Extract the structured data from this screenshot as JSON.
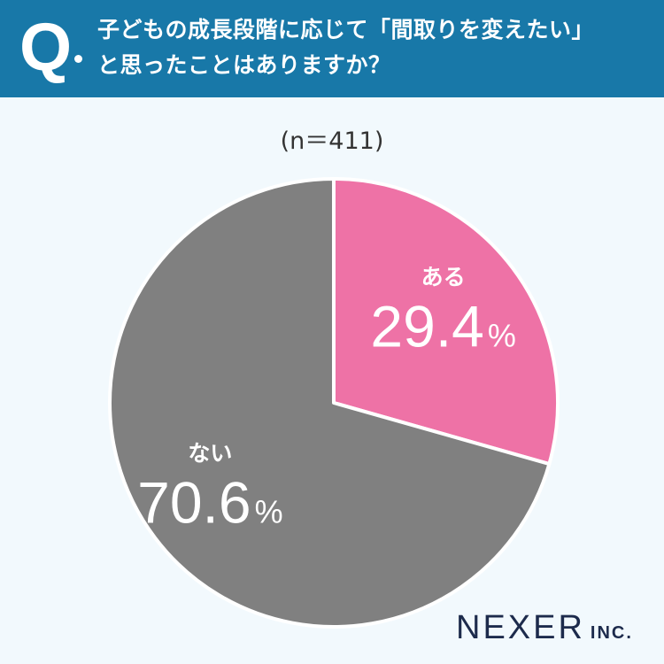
{
  "header": {
    "q_label": "Q",
    "question_line1": "子どもの成長段階に応じて「間取りを変えたい」",
    "question_line2": "と思ったことはありますか？"
  },
  "sample_label": "(n＝411)",
  "colors": {
    "header_bg": "#1878a8",
    "yes": "#ee72a6",
    "no": "#808080",
    "background": "#f2f9fd"
  },
  "chart_data": {
    "type": "pie",
    "title": "子どもの成長段階に応じて「間取りを変えたい」と思ったことはありますか？",
    "n": 411,
    "slices": [
      {
        "label": "ある",
        "value": 29.4,
        "display": "29.4",
        "unit": "%",
        "color": "#ee72a6"
      },
      {
        "label": "ない",
        "value": 70.6,
        "display": "70.6",
        "unit": "%",
        "color": "#808080"
      }
    ],
    "start": "top",
    "direction": "clockwise"
  },
  "logo": {
    "main": "NEXER",
    "sub": "INC."
  }
}
